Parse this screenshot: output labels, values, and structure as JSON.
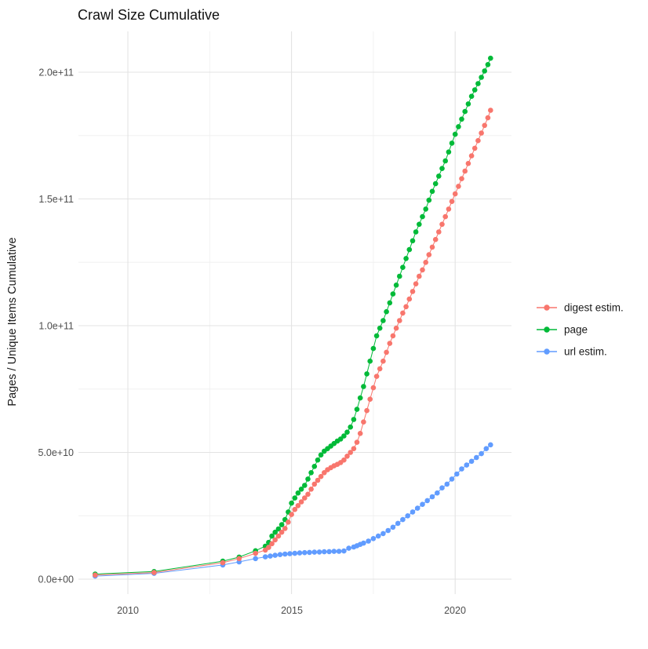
{
  "title": "Crawl Size Cumulative",
  "chart_data": {
    "type": "scatter",
    "title": "Crawl Size Cumulative",
    "xlabel": "",
    "ylabel": "Pages / Unique Items Cumulative",
    "x_tick_labels": [
      "2010",
      "2015",
      "2020"
    ],
    "x_ticks": [
      2010,
      2015,
      2020
    ],
    "x_minor_ticks": [
      2012.5,
      2017.5
    ],
    "y_tick_labels": [
      "0.0e+00",
      "5.0e+10",
      "1.0e+11",
      "1.5e+11",
      "2.0e+11"
    ],
    "y_ticks_billion": [
      0,
      50,
      100,
      150,
      200
    ],
    "y_minor_ticks_billion": [
      25,
      75,
      125,
      175
    ],
    "xlim": [
      2008.5,
      2022.0
    ],
    "ylim": [
      0,
      216000000000.0
    ],
    "grid": true,
    "legend_position": "right",
    "value_unit": "pages, stored in billions (1e9)",
    "series": [
      {
        "name": "digest estim.",
        "color": "#F8766D",
        "points": [
          [
            2009.0,
            1.6
          ],
          [
            2010.8,
            2.6
          ],
          [
            2012.9,
            6.5
          ],
          [
            2013.4,
            8.1
          ],
          [
            2013.9,
            10.2
          ],
          [
            2014.2,
            11.5
          ],
          [
            2014.3,
            12.5
          ],
          [
            2014.4,
            14
          ],
          [
            2014.5,
            15.5
          ],
          [
            2014.6,
            17
          ],
          [
            2014.7,
            18.5
          ],
          [
            2014.8,
            20
          ],
          [
            2014.9,
            22.5
          ],
          [
            2015.0,
            25.5
          ],
          [
            2015.1,
            27.5
          ],
          [
            2015.2,
            29
          ],
          [
            2015.3,
            30.5
          ],
          [
            2015.4,
            32
          ],
          [
            2015.5,
            33.5
          ],
          [
            2015.6,
            35.5
          ],
          [
            2015.7,
            37.5
          ],
          [
            2015.8,
            39
          ],
          [
            2015.9,
            40.5
          ],
          [
            2016.0,
            42
          ],
          [
            2016.1,
            43.2
          ],
          [
            2016.2,
            44
          ],
          [
            2016.3,
            44.7
          ],
          [
            2016.4,
            45.3
          ],
          [
            2016.5,
            46
          ],
          [
            2016.6,
            47
          ],
          [
            2016.7,
            48.5
          ],
          [
            2016.8,
            50
          ],
          [
            2016.9,
            51.5
          ],
          [
            2017.0,
            54
          ],
          [
            2017.1,
            57.5
          ],
          [
            2017.2,
            62
          ],
          [
            2017.3,
            66.5
          ],
          [
            2017.4,
            71
          ],
          [
            2017.5,
            75.5
          ],
          [
            2017.6,
            80
          ],
          [
            2017.7,
            83
          ],
          [
            2017.8,
            86
          ],
          [
            2017.9,
            89.5
          ],
          [
            2018.0,
            93
          ],
          [
            2018.1,
            96
          ],
          [
            2018.2,
            99
          ],
          [
            2018.3,
            102
          ],
          [
            2018.4,
            105
          ],
          [
            2018.5,
            107.5
          ],
          [
            2018.6,
            110.5
          ],
          [
            2018.7,
            113.5
          ],
          [
            2018.8,
            116.5
          ],
          [
            2018.9,
            119.5
          ],
          [
            2019.0,
            122
          ],
          [
            2019.1,
            125
          ],
          [
            2019.2,
            128
          ],
          [
            2019.3,
            131
          ],
          [
            2019.4,
            134
          ],
          [
            2019.5,
            137
          ],
          [
            2019.6,
            140
          ],
          [
            2019.7,
            143
          ],
          [
            2019.8,
            146
          ],
          [
            2019.9,
            149
          ],
          [
            2020.0,
            152
          ],
          [
            2020.1,
            155
          ],
          [
            2020.2,
            158
          ],
          [
            2020.3,
            161
          ],
          [
            2020.4,
            164
          ],
          [
            2020.5,
            167
          ],
          [
            2020.6,
            170
          ],
          [
            2020.7,
            173
          ],
          [
            2020.8,
            176
          ],
          [
            2020.9,
            179
          ],
          [
            2021.0,
            182
          ],
          [
            2021.08,
            185
          ]
        ]
      },
      {
        "name": "page",
        "color": "#00BA38",
        "points": [
          [
            2009.0,
            2
          ],
          [
            2010.8,
            3
          ],
          [
            2012.9,
            7.1
          ],
          [
            2013.4,
            8.7
          ],
          [
            2013.9,
            11.2
          ],
          [
            2014.2,
            13
          ],
          [
            2014.3,
            14.5
          ],
          [
            2014.4,
            17
          ],
          [
            2014.5,
            18.5
          ],
          [
            2014.6,
            19.8
          ],
          [
            2014.7,
            21.5
          ],
          [
            2014.8,
            23.5
          ],
          [
            2014.9,
            26.5
          ],
          [
            2015.0,
            30
          ],
          [
            2015.1,
            32
          ],
          [
            2015.2,
            34
          ],
          [
            2015.3,
            35.5
          ],
          [
            2015.4,
            37
          ],
          [
            2015.5,
            39.5
          ],
          [
            2015.6,
            42
          ],
          [
            2015.7,
            44.5
          ],
          [
            2015.8,
            47
          ],
          [
            2015.9,
            49
          ],
          [
            2016.0,
            50.5
          ],
          [
            2016.1,
            51.5
          ],
          [
            2016.2,
            52.5
          ],
          [
            2016.3,
            53.5
          ],
          [
            2016.4,
            54.5
          ],
          [
            2016.5,
            55.3
          ],
          [
            2016.6,
            56.5
          ],
          [
            2016.7,
            58
          ],
          [
            2016.8,
            60
          ],
          [
            2016.9,
            63
          ],
          [
            2017.0,
            67
          ],
          [
            2017.1,
            71.5
          ],
          [
            2017.2,
            76
          ],
          [
            2017.3,
            81
          ],
          [
            2017.4,
            86
          ],
          [
            2017.5,
            91
          ],
          [
            2017.6,
            96
          ],
          [
            2017.7,
            99
          ],
          [
            2017.8,
            102
          ],
          [
            2017.9,
            105.5
          ],
          [
            2018.0,
            109
          ],
          [
            2018.1,
            112.5
          ],
          [
            2018.2,
            116
          ],
          [
            2018.3,
            119.5
          ],
          [
            2018.4,
            123
          ],
          [
            2018.5,
            126.5
          ],
          [
            2018.6,
            130
          ],
          [
            2018.7,
            133.5
          ],
          [
            2018.8,
            137
          ],
          [
            2018.9,
            140
          ],
          [
            2019.0,
            143
          ],
          [
            2019.1,
            146
          ],
          [
            2019.2,
            149.5
          ],
          [
            2019.3,
            153
          ],
          [
            2019.4,
            156
          ],
          [
            2019.5,
            159
          ],
          [
            2019.6,
            162
          ],
          [
            2019.7,
            165
          ],
          [
            2019.8,
            168.5
          ],
          [
            2019.9,
            172
          ],
          [
            2020.0,
            175.5
          ],
          [
            2020.1,
            178.5
          ],
          [
            2020.2,
            181.5
          ],
          [
            2020.3,
            184.5
          ],
          [
            2020.4,
            187.5
          ],
          [
            2020.5,
            190.5
          ],
          [
            2020.6,
            193
          ],
          [
            2020.7,
            195.5
          ],
          [
            2020.8,
            198
          ],
          [
            2020.9,
            200.5
          ],
          [
            2021.0,
            203
          ],
          [
            2021.08,
            205.5
          ]
        ]
      },
      {
        "name": "url estim.",
        "color": "#619CFF",
        "points": [
          [
            2009.0,
            1.2
          ],
          [
            2010.8,
            2.3
          ],
          [
            2012.9,
            5.6
          ],
          [
            2013.4,
            6.8
          ],
          [
            2013.9,
            8.1
          ],
          [
            2014.2,
            8.8
          ],
          [
            2014.35,
            9.1
          ],
          [
            2014.5,
            9.4
          ],
          [
            2014.65,
            9.7
          ],
          [
            2014.8,
            9.9
          ],
          [
            2014.95,
            10.05
          ],
          [
            2015.1,
            10.2
          ],
          [
            2015.25,
            10.35
          ],
          [
            2015.4,
            10.45
          ],
          [
            2015.55,
            10.55
          ],
          [
            2015.7,
            10.65
          ],
          [
            2015.85,
            10.72
          ],
          [
            2016.0,
            10.8
          ],
          [
            2016.15,
            10.88
          ],
          [
            2016.3,
            10.95
          ],
          [
            2016.45,
            11.0
          ],
          [
            2016.6,
            11.1
          ],
          [
            2016.75,
            12.2
          ],
          [
            2016.9,
            12.7
          ],
          [
            2017.0,
            13.2
          ],
          [
            2017.1,
            13.7
          ],
          [
            2017.2,
            14.2
          ],
          [
            2017.35,
            15.0
          ],
          [
            2017.5,
            16.0
          ],
          [
            2017.65,
            17.0
          ],
          [
            2017.8,
            18.0
          ],
          [
            2017.95,
            19.2
          ],
          [
            2018.1,
            20.5
          ],
          [
            2018.25,
            22
          ],
          [
            2018.4,
            23.5
          ],
          [
            2018.55,
            25
          ],
          [
            2018.7,
            26.5
          ],
          [
            2018.85,
            28
          ],
          [
            2019.0,
            29.5
          ],
          [
            2019.15,
            31
          ],
          [
            2019.3,
            32.5
          ],
          [
            2019.45,
            34
          ],
          [
            2019.6,
            36
          ],
          [
            2019.75,
            37.5
          ],
          [
            2019.9,
            39.5
          ],
          [
            2020.05,
            41.5
          ],
          [
            2020.2,
            43.5
          ],
          [
            2020.35,
            45
          ],
          [
            2020.5,
            46.5
          ],
          [
            2020.65,
            48
          ],
          [
            2020.8,
            49.5
          ],
          [
            2020.95,
            51.5
          ],
          [
            2021.08,
            53
          ]
        ]
      }
    ]
  }
}
